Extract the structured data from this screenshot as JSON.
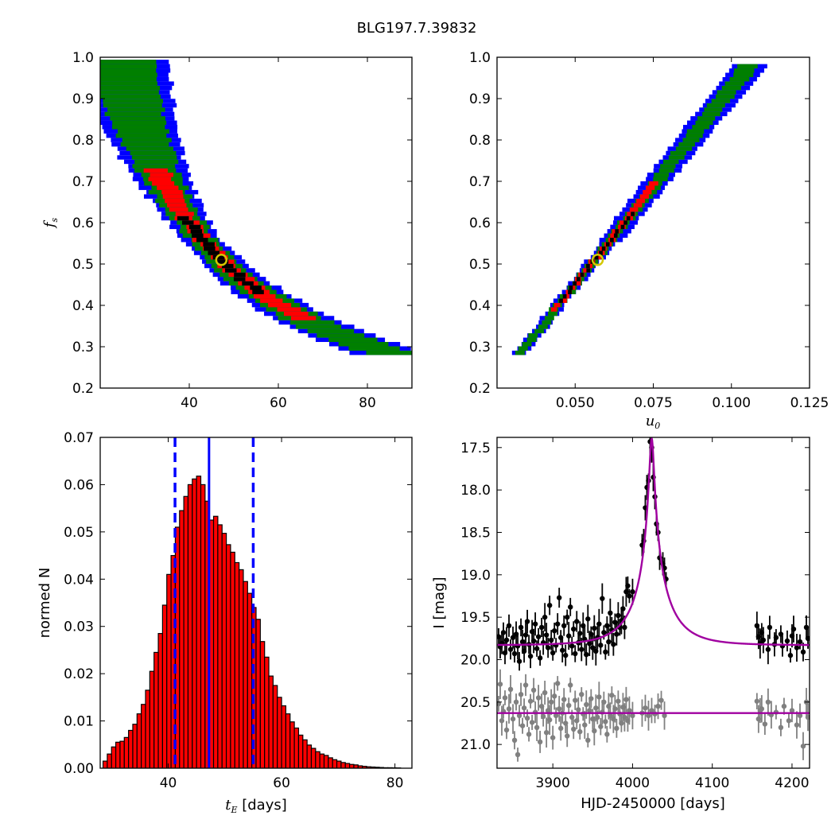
{
  "figure_title": "BLG197.7.39832",
  "colors": {
    "blue": "#0000ff",
    "green": "#007f00",
    "red": "#ff0000",
    "black": "#000000",
    "hist_fill": "#ff0000",
    "model": "#a000a0",
    "gray": "#808080",
    "best_fit_marker": "#d4c800"
  },
  "chart_data": [
    {
      "panel": "top-left",
      "type": "heatmap",
      "title": "",
      "xlabel": "",
      "ylabel_main": "f",
      "ylabel_sub": "s",
      "xlim": [
        20,
        90
      ],
      "ylim": [
        0.2,
        1.0
      ],
      "xticks": [
        "40",
        "60",
        "80"
      ],
      "yticks": [
        "0.2",
        "0.3",
        "0.4",
        "0.5",
        "0.6",
        "0.7",
        "0.8",
        "0.9",
        "1.0"
      ],
      "relation": "fs ≈ 23.8 / tE",
      "contour_levels": [
        "blue",
        "green",
        "red",
        "black"
      ],
      "best_fit": {
        "x": 47.2,
        "y": 0.51
      }
    },
    {
      "panel": "top-right",
      "type": "heatmap",
      "title": "",
      "xlabel_main": "u",
      "xlabel_sub": "0",
      "ylabel": "",
      "xlim": [
        0.025,
        0.125
      ],
      "ylim": [
        0.2,
        1.0
      ],
      "xticks": [
        "0.050",
        "0.075",
        "0.100",
        "0.125"
      ],
      "yticks": [
        "0.2",
        "0.3",
        "0.4",
        "0.5",
        "0.6",
        "0.7",
        "0.8",
        "0.9",
        "1.0"
      ],
      "relation": "fs ≈ 0.28 + 9.5·(u0 − 0.0326)",
      "best_fit": {
        "x": 0.0572,
        "y": 0.51
      }
    },
    {
      "panel": "bottom-left",
      "type": "bar",
      "title": "",
      "xlabel_main": "t",
      "xlabel_sub": "E",
      "xlabel_rest": " [days]",
      "ylabel": "normed N",
      "xlim": [
        28,
        83
      ],
      "ylim": [
        0,
        0.07
      ],
      "xticks": [
        "40",
        "60",
        "80"
      ],
      "yticks": [
        "0.00",
        "0.01",
        "0.02",
        "0.03",
        "0.04",
        "0.05",
        "0.06",
        "0.07"
      ],
      "bin_width": 0.75,
      "bin_start": 28.5,
      "values": [
        0.0015,
        0.003,
        0.0045,
        0.0055,
        0.0057,
        0.0065,
        0.008,
        0.0093,
        0.0115,
        0.0135,
        0.0165,
        0.0205,
        0.0245,
        0.0285,
        0.0345,
        0.041,
        0.045,
        0.051,
        0.0545,
        0.0575,
        0.06,
        0.0612,
        0.0618,
        0.06,
        0.0565,
        0.0525,
        0.0533,
        0.0515,
        0.0497,
        0.0473,
        0.0457,
        0.0435,
        0.042,
        0.0395,
        0.037,
        0.034,
        0.0315,
        0.0268,
        0.0235,
        0.0195,
        0.0175,
        0.015,
        0.0132,
        0.0115,
        0.0098,
        0.0085,
        0.007,
        0.006,
        0.0049,
        0.0042,
        0.0035,
        0.003,
        0.0027,
        0.0022,
        0.0018,
        0.0015,
        0.0012,
        0.001,
        0.0008,
        0.0007,
        0.0005,
        0.0004,
        0.0003,
        0.00025,
        0.0002,
        0.00015,
        0.0001,
        0.0001,
        8e-05,
        6e-05
      ],
      "median": 47.2,
      "interval": [
        41.2,
        55.0
      ]
    },
    {
      "panel": "bottom-right",
      "type": "scatter",
      "title": "",
      "xlabel": "HJD-2450000 [days]",
      "ylabel": "I [mag]",
      "xlim": [
        3830,
        4222
      ],
      "ylim": [
        21.28,
        17.38
      ],
      "xticks": [
        "3900",
        "4000",
        "4100",
        "4200"
      ],
      "xtick_values": [
        3900,
        4000,
        4100,
        4200
      ],
      "yticks": [
        "17.5",
        "18.0",
        "18.5",
        "19.0",
        "19.5",
        "20.0",
        "20.5",
        "21.0"
      ],
      "model": {
        "t0": 4024,
        "u0": 0.057,
        "tE": 47.2,
        "baseline": 19.83,
        "fs": 0.51,
        "lower_baseline": 20.63
      },
      "series": [
        {
          "name": "",
          "color": "black",
          "points": [
            [
              3832,
              19.73
            ],
            [
              3834,
              19.85
            ],
            [
              3836,
              19.81
            ],
            [
              3838,
              19.68
            ],
            [
              3840,
              19.92
            ],
            [
              3842,
              19.77
            ],
            [
              3845,
              19.6
            ],
            [
              3847,
              19.88
            ],
            [
              3850,
              19.74
            ],
            [
              3852,
              19.93
            ],
            [
              3854,
              19.7
            ],
            [
              3856,
              19.84
            ],
            [
              3858,
              20.02
            ],
            [
              3860,
              19.62
            ],
            [
              3862,
              19.79
            ],
            [
              3864,
              19.9
            ],
            [
              3866,
              19.71
            ],
            [
              3868,
              19.55
            ],
            [
              3870,
              19.82
            ],
            [
              3872,
              19.96
            ],
            [
              3874,
              19.67
            ],
            [
              3876,
              19.78
            ],
            [
              3878,
              19.58
            ],
            [
              3880,
              19.87
            ],
            [
              3882,
              19.73
            ],
            [
              3884,
              19.98
            ],
            [
              3886,
              19.62
            ],
            [
              3888,
              19.8
            ],
            [
              3890,
              19.5
            ],
            [
              3892,
              19.71
            ],
            [
              3894,
              19.86
            ],
            [
              3896,
              19.36
            ],
            [
              3898,
              19.77
            ],
            [
              3900,
              19.92
            ],
            [
              3902,
              19.66
            ],
            [
              3904,
              19.83
            ],
            [
              3906,
              19.58
            ],
            [
              3908,
              19.27
            ],
            [
              3910,
              19.74
            ],
            [
              3912,
              19.89
            ],
            [
              3914,
              19.6
            ],
            [
              3916,
              19.95
            ],
            [
              3918,
              19.5
            ],
            [
              3920,
              19.72
            ],
            [
              3922,
              19.38
            ],
            [
              3924,
              19.84
            ],
            [
              3926,
              19.64
            ],
            [
              3928,
              19.93
            ],
            [
              3930,
              19.55
            ],
            [
              3932,
              19.8
            ],
            [
              3934,
              19.69
            ],
            [
              3936,
              19.88
            ],
            [
              3938,
              19.6
            ],
            [
              3940,
              19.76
            ],
            [
              3942,
              19.94
            ],
            [
              3944,
              19.52
            ],
            [
              3946,
              19.81
            ],
            [
              3948,
              19.7
            ],
            [
              3950,
              19.86
            ],
            [
              3952,
              19.63
            ],
            [
              3954,
              19.9
            ],
            [
              3956,
              19.74
            ],
            [
              3958,
              19.58
            ],
            [
              3960,
              19.83
            ],
            [
              3962,
              19.28
            ],
            [
              3964,
              19.68
            ],
            [
              3966,
              19.91
            ],
            [
              3968,
              19.6
            ],
            [
              3970,
              19.79
            ],
            [
              3972,
              19.45
            ],
            [
              3974,
              19.65
            ],
            [
              3976,
              19.82
            ],
            [
              3978,
              19.56
            ],
            [
              3980,
              19.7
            ],
            [
              3982,
              19.48
            ],
            [
              3984,
              19.62
            ],
            [
              3986,
              19.54
            ],
            [
              3988,
              19.4
            ],
            [
              3990,
              19.62
            ],
            [
              3992,
              19.2
            ],
            [
              3994,
              19.13
            ],
            [
              3996,
              19.25
            ],
            [
              4000,
              19.2
            ],
            [
              4012,
              18.65
            ],
            [
              4014,
              18.6
            ],
            [
              4016,
              18.21
            ],
            [
              4018,
              17.97
            ],
            [
              4020,
              17.89
            ],
            [
              4022,
              17.43
            ],
            [
              4024,
              17.5
            ],
            [
              4026,
              17.85
            ],
            [
              4028,
              18.08
            ],
            [
              4030,
              18.4
            ],
            [
              4032,
              18.5
            ],
            [
              4034,
              18.8
            ],
            [
              4038,
              18.87
            ],
            [
              4040,
              18.92
            ],
            [
              4042,
              19.05
            ],
            [
              4156,
              19.6
            ],
            [
              4158,
              19.73
            ],
            [
              4160,
              19.81
            ],
            [
              4162,
              19.68
            ],
            [
              4164,
              19.77
            ],
            [
              4170,
              19.88
            ],
            [
              4172,
              19.62
            ],
            [
              4178,
              19.82
            ],
            [
              4180,
              19.74
            ],
            [
              4186,
              19.7
            ],
            [
              4188,
              19.84
            ],
            [
              4194,
              19.78
            ],
            [
              4198,
              19.95
            ],
            [
              4200,
              19.72
            ],
            [
              4202,
              19.64
            ],
            [
              4206,
              19.86
            ],
            [
              4210,
              19.79
            ],
            [
              4214,
              19.91
            ],
            [
              4218,
              19.62
            ],
            [
              4220,
              19.75
            ]
          ]
        },
        {
          "name": "",
          "color": "gray",
          "points": [
            [
              3832,
              20.52
            ],
            [
              3834,
              20.29
            ],
            [
              3836,
              20.72
            ],
            [
              3838,
              20.61
            ],
            [
              3840,
              20.45
            ],
            [
              3842,
              20.83
            ],
            [
              3845,
              20.58
            ],
            [
              3847,
              20.35
            ],
            [
              3850,
              20.7
            ],
            [
              3852,
              20.95
            ],
            [
              3854,
              20.5
            ],
            [
              3856,
              21.12
            ],
            [
              3858,
              20.66
            ],
            [
              3860,
              20.41
            ],
            [
              3862,
              20.78
            ],
            [
              3864,
              20.57
            ],
            [
              3866,
              20.3
            ],
            [
              3868,
              20.69
            ],
            [
              3870,
              20.88
            ],
            [
              3872,
              20.49
            ],
            [
              3874,
              20.74
            ],
            [
              3876,
              20.36
            ],
            [
              3878,
              20.62
            ],
            [
              3880,
              20.8
            ],
            [
              3882,
              20.45
            ],
            [
              3884,
              20.97
            ],
            [
              3886,
              20.55
            ],
            [
              3888,
              20.67
            ],
            [
              3890,
              20.39
            ],
            [
              3892,
              20.86
            ],
            [
              3894,
              20.6
            ],
            [
              3896,
              20.71
            ],
            [
              3898,
              20.5
            ],
            [
              3900,
              20.92
            ],
            [
              3902,
              20.43
            ],
            [
              3904,
              20.66
            ],
            [
              3906,
              20.28
            ],
            [
              3908,
              20.58
            ],
            [
              3910,
              20.81
            ],
            [
              3912,
              20.63
            ],
            [
              3914,
              20.47
            ],
            [
              3916,
              20.75
            ],
            [
              3918,
              20.9
            ],
            [
              3920,
              20.54
            ],
            [
              3922,
              20.3
            ],
            [
              3924,
              20.68
            ],
            [
              3926,
              20.82
            ],
            [
              3928,
              20.48
            ],
            [
              3930,
              20.72
            ],
            [
              3932,
              20.59
            ],
            [
              3934,
              20.85
            ],
            [
              3936,
              20.41
            ],
            [
              3938,
              20.64
            ],
            [
              3940,
              20.77
            ],
            [
              3942,
              20.53
            ],
            [
              3944,
              20.95
            ],
            [
              3946,
              20.6
            ],
            [
              3948,
              20.46
            ],
            [
              3950,
              20.7
            ],
            [
              3952,
              20.84
            ],
            [
              3954,
              20.57
            ],
            [
              3956,
              20.68
            ],
            [
              3958,
              20.44
            ],
            [
              3960,
              20.79
            ],
            [
              3962,
              20.62
            ],
            [
              3964,
              20.5
            ],
            [
              3966,
              20.73
            ],
            [
              3968,
              20.88
            ],
            [
              3970,
              20.55
            ],
            [
              3972,
              20.66
            ],
            [
              3974,
              20.42
            ],
            [
              3976,
              20.7
            ],
            [
              3978,
              20.58
            ],
            [
              3980,
              20.81
            ],
            [
              3982,
              20.49
            ],
            [
              3984,
              20.64
            ],
            [
              3986,
              20.75
            ],
            [
              3988,
              20.56
            ],
            [
              3990,
              20.68
            ],
            [
              3992,
              20.47
            ],
            [
              3994,
              20.72
            ],
            [
              3996,
              20.6
            ],
            [
              4000,
              20.66
            ],
            [
              4012,
              20.63
            ],
            [
              4016,
              20.57
            ],
            [
              4020,
              20.66
            ],
            [
              4024,
              20.6
            ],
            [
              4028,
              20.64
            ],
            [
              4032,
              20.55
            ],
            [
              4036,
              20.48
            ],
            [
              4040,
              20.66
            ],
            [
              4156,
              20.49
            ],
            [
              4158,
              20.7
            ],
            [
              4160,
              20.6
            ],
            [
              4162,
              20.58
            ],
            [
              4166,
              20.76
            ],
            [
              4170,
              20.5
            ],
            [
              4174,
              20.65
            ],
            [
              4180,
              20.62
            ],
            [
              4186,
              20.8
            ],
            [
              4190,
              20.55
            ],
            [
              4196,
              20.72
            ],
            [
              4200,
              20.6
            ],
            [
              4206,
              20.77
            ],
            [
              4210,
              20.66
            ],
            [
              4214,
              21.02
            ],
            [
              4218,
              20.5
            ],
            [
              4220,
              20.68
            ]
          ]
        }
      ]
    }
  ]
}
